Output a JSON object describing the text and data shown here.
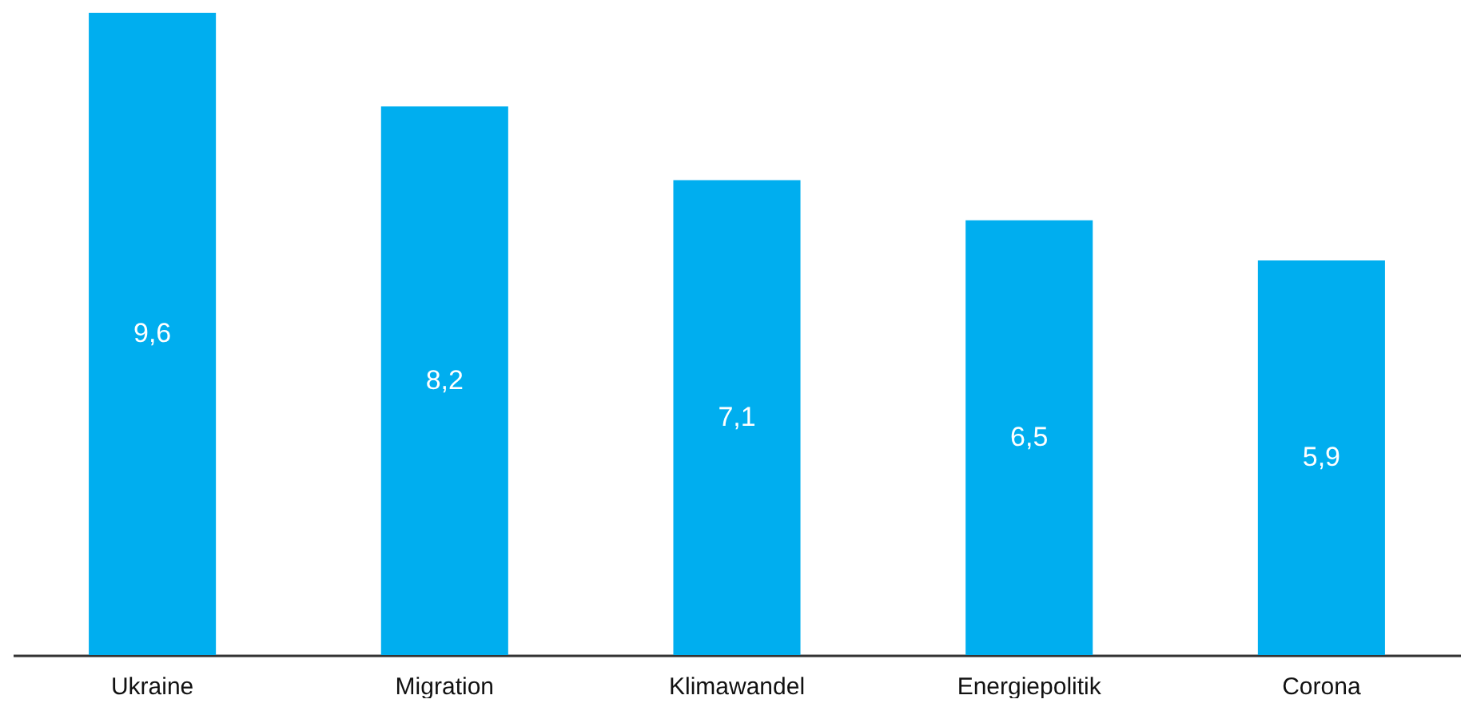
{
  "chart_data": {
    "type": "bar",
    "categories": [
      "Ukraine",
      "Migration",
      "Klimawandel",
      "Energiepolitik",
      "Corona"
    ],
    "values": [
      9.6,
      8.2,
      7.1,
      6.5,
      5.9
    ],
    "value_labels": [
      "9,6",
      "8,2",
      "7,1",
      "6,5",
      "5,9"
    ],
    "color": "#00aeef"
  }
}
